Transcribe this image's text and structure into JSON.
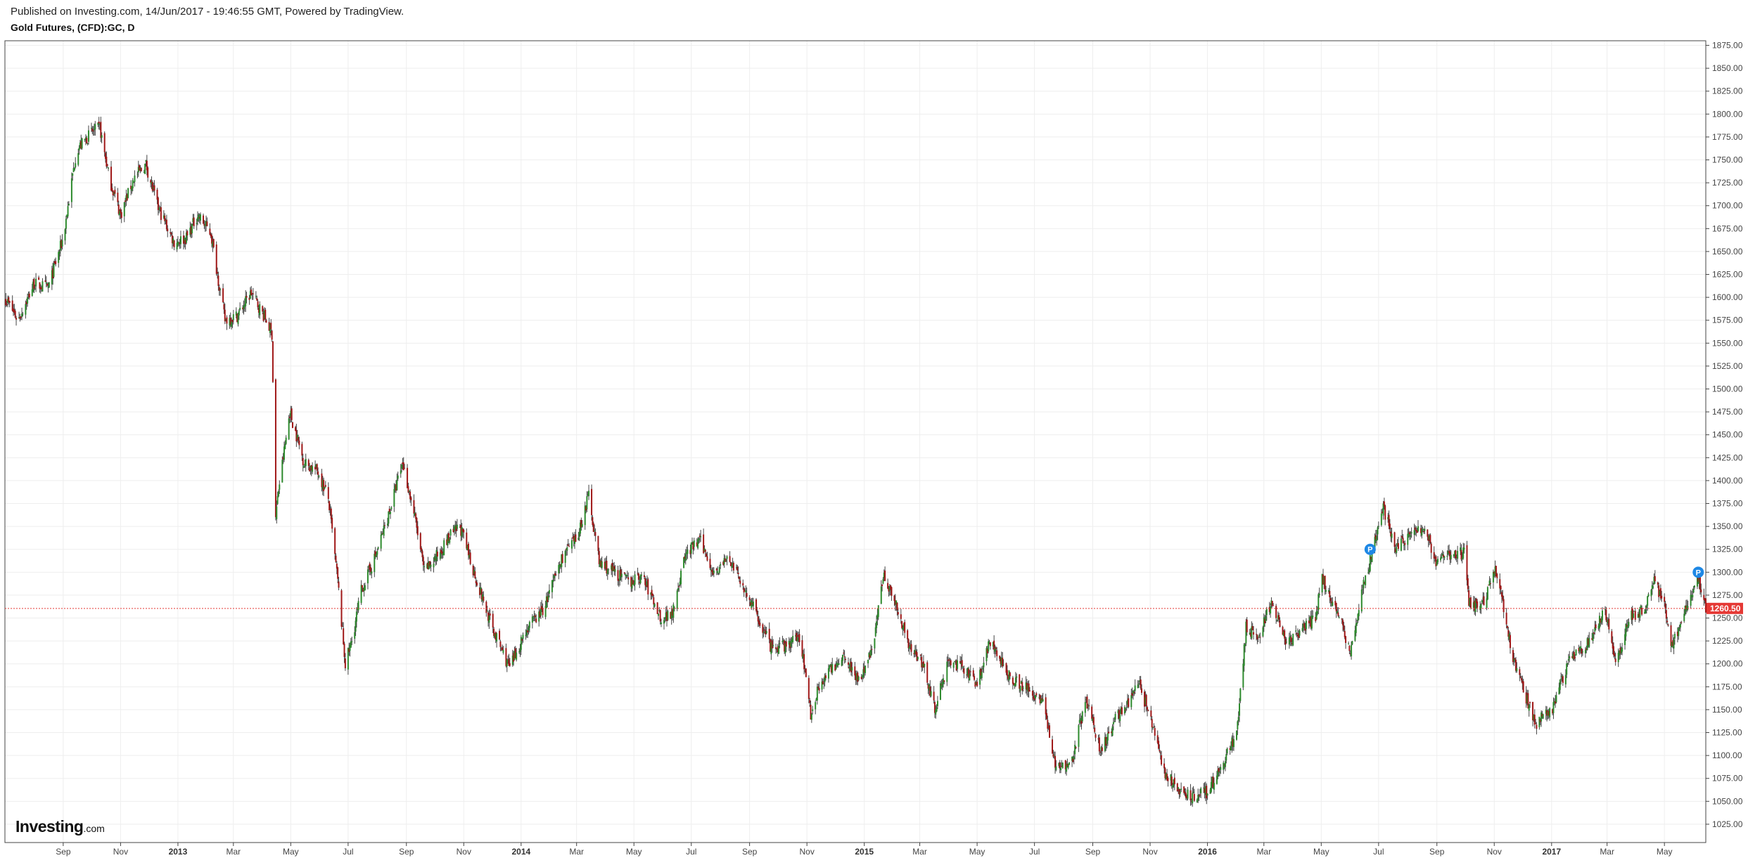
{
  "header": {
    "published": "Published on Investing.com, 14/Jun/2017 - 19:46:55 GMT, Powered by TradingView.",
    "symbol": "Gold Futures, (CFD):GC, D"
  },
  "logo": {
    "name": "Investing",
    "suffix": ".com"
  },
  "colors": {
    "up": "#2e8b2e",
    "down": "#a01818",
    "wick": "#444444",
    "grid": "#eeeeee",
    "price_line": "#e53935",
    "price_label_bg": "#e53935",
    "marker": "#1e88e5"
  },
  "chart_data": {
    "type": "candlestick",
    "y_axis_position": "right",
    "ylim": [
      1005,
      1880
    ],
    "y_ticks": [
      1025,
      1050,
      1075,
      1100,
      1125,
      1150,
      1175,
      1200,
      1225,
      1250,
      1275,
      1300,
      1325,
      1350,
      1375,
      1400,
      1425,
      1450,
      1475,
      1500,
      1525,
      1550,
      1575,
      1600,
      1625,
      1650,
      1675,
      1700,
      1725,
      1750,
      1775,
      1800,
      1825,
      1850,
      1875
    ],
    "x_range": [
      "2012-07-01",
      "2017-06-14"
    ],
    "x_ticks": [
      {
        "date": "2012-09-01",
        "label": "Sep",
        "bold": false
      },
      {
        "date": "2012-11-01",
        "label": "Nov",
        "bold": false
      },
      {
        "date": "2013-01-01",
        "label": "2013",
        "bold": true
      },
      {
        "date": "2013-03-01",
        "label": "Mar",
        "bold": false
      },
      {
        "date": "2013-05-01",
        "label": "May",
        "bold": false
      },
      {
        "date": "2013-07-01",
        "label": "Jul",
        "bold": false
      },
      {
        "date": "2013-09-01",
        "label": "Sep",
        "bold": false
      },
      {
        "date": "2013-11-01",
        "label": "Nov",
        "bold": false
      },
      {
        "date": "2014-01-01",
        "label": "2014",
        "bold": true
      },
      {
        "date": "2014-03-01",
        "label": "Mar",
        "bold": false
      },
      {
        "date": "2014-05-01",
        "label": "May",
        "bold": false
      },
      {
        "date": "2014-07-01",
        "label": "Jul",
        "bold": false
      },
      {
        "date": "2014-09-01",
        "label": "Sep",
        "bold": false
      },
      {
        "date": "2014-11-01",
        "label": "Nov",
        "bold": false
      },
      {
        "date": "2015-01-01",
        "label": "2015",
        "bold": true
      },
      {
        "date": "2015-03-01",
        "label": "Mar",
        "bold": false
      },
      {
        "date": "2015-05-01",
        "label": "May",
        "bold": false
      },
      {
        "date": "2015-07-01",
        "label": "Jul",
        "bold": false
      },
      {
        "date": "2015-09-01",
        "label": "Sep",
        "bold": false
      },
      {
        "date": "2015-11-01",
        "label": "Nov",
        "bold": false
      },
      {
        "date": "2016-01-01",
        "label": "2016",
        "bold": true
      },
      {
        "date": "2016-03-01",
        "label": "Mar",
        "bold": false
      },
      {
        "date": "2016-05-01",
        "label": "May",
        "bold": false
      },
      {
        "date": "2016-07-01",
        "label": "Jul",
        "bold": false
      },
      {
        "date": "2016-09-01",
        "label": "Sep",
        "bold": false
      },
      {
        "date": "2016-11-01",
        "label": "Nov",
        "bold": false
      },
      {
        "date": "2017-01-01",
        "label": "2017",
        "bold": true
      },
      {
        "date": "2017-03-01",
        "label": "Mar",
        "bold": false
      },
      {
        "date": "2017-05-01",
        "label": "May",
        "bold": false
      }
    ],
    "price_path": [
      [
        "2012-07-01",
        1600
      ],
      [
        "2012-07-15",
        1575
      ],
      [
        "2012-08-01",
        1615
      ],
      [
        "2012-08-16",
        1610
      ],
      [
        "2012-09-01",
        1665
      ],
      [
        "2012-09-15",
        1760
      ],
      [
        "2012-10-01",
        1780
      ],
      [
        "2012-10-10",
        1785
      ],
      [
        "2012-10-20",
        1730
      ],
      [
        "2012-11-01",
        1690
      ],
      [
        "2012-11-15",
        1730
      ],
      [
        "2012-11-28",
        1745
      ],
      [
        "2012-12-10",
        1700
      ],
      [
        "2012-12-28",
        1660
      ],
      [
        "2013-01-10",
        1665
      ],
      [
        "2013-01-22",
        1690
      ],
      [
        "2013-02-05",
        1670
      ],
      [
        "2013-02-20",
        1575
      ],
      [
        "2013-03-05",
        1580
      ],
      [
        "2013-03-20",
        1605
      ],
      [
        "2013-04-05",
        1575
      ],
      [
        "2013-04-11",
        1560
      ],
      [
        "2013-04-15",
        1360
      ],
      [
        "2013-04-18",
        1390
      ],
      [
        "2013-04-30",
        1475
      ],
      [
        "2013-05-15",
        1420
      ],
      [
        "2013-05-30",
        1410
      ],
      [
        "2013-06-10",
        1380
      ],
      [
        "2013-06-20",
        1290
      ],
      [
        "2013-06-28",
        1200
      ],
      [
        "2013-07-05",
        1225
      ],
      [
        "2013-07-15",
        1280
      ],
      [
        "2013-07-31",
        1320
      ],
      [
        "2013-08-15",
        1370
      ],
      [
        "2013-08-28",
        1420
      ],
      [
        "2013-09-10",
        1360
      ],
      [
        "2013-09-20",
        1300
      ],
      [
        "2013-10-05",
        1320
      ],
      [
        "2013-10-18",
        1340
      ],
      [
        "2013-10-28",
        1350
      ],
      [
        "2013-11-15",
        1290
      ],
      [
        "2013-12-01",
        1240
      ],
      [
        "2013-12-20",
        1195
      ],
      [
        "2014-01-05",
        1235
      ],
      [
        "2014-01-25",
        1260
      ],
      [
        "2014-02-15",
        1320
      ],
      [
        "2014-03-01",
        1335
      ],
      [
        "2014-03-14",
        1385
      ],
      [
        "2014-03-25",
        1310
      ],
      [
        "2014-04-10",
        1300
      ],
      [
        "2014-04-25",
        1290
      ],
      [
        "2014-05-10",
        1295
      ],
      [
        "2014-05-30",
        1250
      ],
      [
        "2014-06-10",
        1255
      ],
      [
        "2014-06-25",
        1320
      ],
      [
        "2014-07-10",
        1335
      ],
      [
        "2014-07-25",
        1300
      ],
      [
        "2014-08-10",
        1315
      ],
      [
        "2014-08-25",
        1285
      ],
      [
        "2014-09-10",
        1250
      ],
      [
        "2014-09-25",
        1215
      ],
      [
        "2014-10-10",
        1220
      ],
      [
        "2014-10-25",
        1230
      ],
      [
        "2014-11-05",
        1145
      ],
      [
        "2014-11-15",
        1180
      ],
      [
        "2014-11-28",
        1195
      ],
      [
        "2014-12-10",
        1210
      ],
      [
        "2014-12-28",
        1180
      ],
      [
        "2015-01-10",
        1220
      ],
      [
        "2015-01-22",
        1300
      ],
      [
        "2015-02-05",
        1260
      ],
      [
        "2015-02-20",
        1215
      ],
      [
        "2015-03-05",
        1200
      ],
      [
        "2015-03-17",
        1150
      ],
      [
        "2015-04-01",
        1205
      ],
      [
        "2015-04-15",
        1195
      ],
      [
        "2015-05-01",
        1180
      ],
      [
        "2015-05-15",
        1225
      ],
      [
        "2015-06-01",
        1190
      ],
      [
        "2015-06-20",
        1175
      ],
      [
        "2015-07-10",
        1160
      ],
      [
        "2015-07-24",
        1085
      ],
      [
        "2015-08-10",
        1095
      ],
      [
        "2015-08-24",
        1160
      ],
      [
        "2015-09-10",
        1105
      ],
      [
        "2015-09-25",
        1140
      ],
      [
        "2015-10-10",
        1160
      ],
      [
        "2015-10-20",
        1180
      ],
      [
        "2015-11-01",
        1140
      ],
      [
        "2015-11-15",
        1085
      ],
      [
        "2015-12-01",
        1060
      ],
      [
        "2015-12-18",
        1055
      ],
      [
        "2015-12-31",
        1060
      ],
      [
        "2016-01-15",
        1085
      ],
      [
        "2016-02-01",
        1125
      ],
      [
        "2016-02-11",
        1240
      ],
      [
        "2016-02-25",
        1230
      ],
      [
        "2016-03-10",
        1270
      ],
      [
        "2016-03-25",
        1220
      ],
      [
        "2016-04-10",
        1235
      ],
      [
        "2016-04-25",
        1250
      ],
      [
        "2016-05-02",
        1295
      ],
      [
        "2016-05-20",
        1250
      ],
      [
        "2016-06-01",
        1215
      ],
      [
        "2016-06-15",
        1285
      ],
      [
        "2016-06-24",
        1320
      ],
      [
        "2016-07-06",
        1370
      ],
      [
        "2016-07-20",
        1325
      ],
      [
        "2016-08-05",
        1345
      ],
      [
        "2016-08-20",
        1345
      ],
      [
        "2016-09-01",
        1310
      ],
      [
        "2016-09-15",
        1320
      ],
      [
        "2016-09-30",
        1320
      ],
      [
        "2016-10-05",
        1265
      ],
      [
        "2016-10-20",
        1265
      ],
      [
        "2016-11-02",
        1305
      ],
      [
        "2016-11-10",
        1265
      ],
      [
        "2016-11-20",
        1210
      ],
      [
        "2016-12-01",
        1175
      ],
      [
        "2016-12-15",
        1135
      ],
      [
        "2017-01-01",
        1150
      ],
      [
        "2017-01-20",
        1205
      ],
      [
        "2017-02-10",
        1225
      ],
      [
        "2017-02-27",
        1260
      ],
      [
        "2017-03-10",
        1200
      ],
      [
        "2017-03-25",
        1250
      ],
      [
        "2017-04-10",
        1260
      ],
      [
        "2017-04-20",
        1290
      ],
      [
        "2017-05-01",
        1265
      ],
      [
        "2017-05-09",
        1220
      ],
      [
        "2017-05-25",
        1265
      ],
      [
        "2017-06-06",
        1295
      ],
      [
        "2017-06-14",
        1260.5
      ]
    ],
    "last_price": 1260.5,
    "last_price_label": "1260.50",
    "markers": [
      {
        "date": "2016-06-22",
        "value": 1325,
        "label": "P"
      },
      {
        "date": "2017-06-06",
        "value": 1300,
        "label": "P"
      }
    ]
  }
}
